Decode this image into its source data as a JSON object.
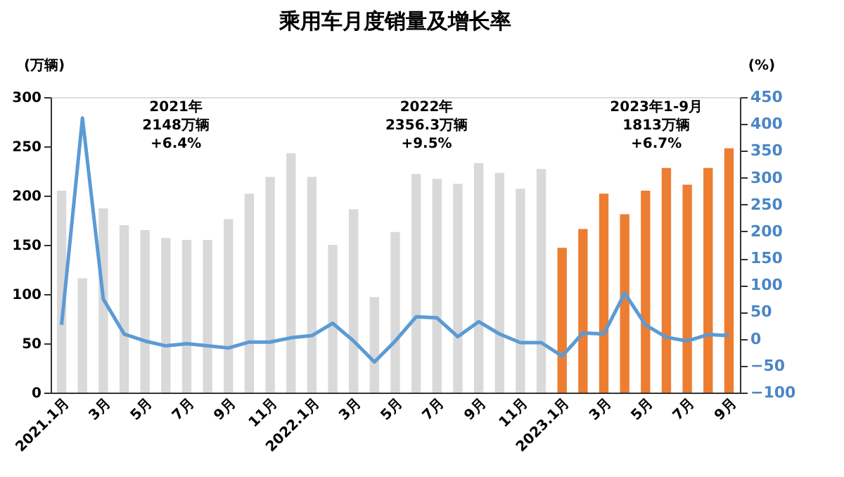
{
  "chart_data": {
    "type": "bar",
    "title": "乘用车月度销量及增长率",
    "ylabel": "(万辆)",
    "y2label": "(%)",
    "categories": [
      "2021.1月",
      null,
      "3月",
      null,
      "5月",
      null,
      "7月",
      null,
      "9月",
      null,
      "11月",
      null,
      "2022.1月",
      null,
      "3月",
      null,
      "5月",
      null,
      "7月",
      null,
      "9月",
      null,
      "11月",
      null,
      "2023.1月",
      null,
      "3月",
      null,
      "5月",
      null,
      "7月",
      null,
      "9月"
    ],
    "series": [
      {
        "colors": [
          "#d9d9d9",
          "#d9d9d9",
          "#d9d9d9",
          "#d9d9d9",
          "#d9d9d9",
          "#d9d9d9",
          "#d9d9d9",
          "#d9d9d9",
          "#d9d9d9",
          "#d9d9d9",
          "#d9d9d9",
          "#d9d9d9",
          "#d9d9d9",
          "#d9d9d9",
          "#d9d9d9",
          "#d9d9d9",
          "#d9d9d9",
          "#d9d9d9",
          "#d9d9d9",
          "#d9d9d9",
          "#d9d9d9",
          "#d9d9d9",
          "#d9d9d9",
          "#d9d9d9",
          "#ed7d31",
          "#ed7d31",
          "#ed7d31",
          "#ed7d31",
          "#ed7d31",
          "#ed7d31",
          "#ed7d31",
          "#ed7d31",
          "#ed7d31"
        ],
        "values": [
          205,
          116,
          187,
          170,
          165,
          157,
          155,
          155,
          176,
          202,
          219,
          243,
          219,
          150,
          186,
          97,
          163,
          222,
          217,
          212,
          233,
          223,
          207,
          227,
          147,
          166,
          202,
          181,
          205,
          228,
          211,
          228,
          248
        ]
      },
      {
        "type": "line",
        "axis": "y2",
        "color": "#5b9bd5",
        "values": [
          26,
          411,
          74,
          9,
          -4,
          -13,
          -9,
          -13,
          -17,
          -6,
          -6,
          2,
          6,
          29,
          -4,
          -43,
          -4,
          41,
          39,
          4,
          32,
          9,
          -7,
          -7,
          -32,
          11,
          9,
          85,
          26,
          3,
          -4,
          8,
          6
        ]
      }
    ],
    "ylim": [
      0,
      300
    ],
    "yticks": [
      0,
      50,
      100,
      150,
      200,
      250,
      300
    ],
    "y2lim": [
      -100,
      450
    ],
    "y2ticks": [
      -100,
      -50,
      0,
      50,
      100,
      150,
      200,
      250,
      300,
      350,
      400,
      450
    ],
    "annotations": [
      "2021年\n2148万辆\n+6.4%",
      "2022年\n2356.3万辆\n+9.5%",
      "2023年1-9月\n1813万辆\n+6.7%"
    ],
    "grid": false
  }
}
